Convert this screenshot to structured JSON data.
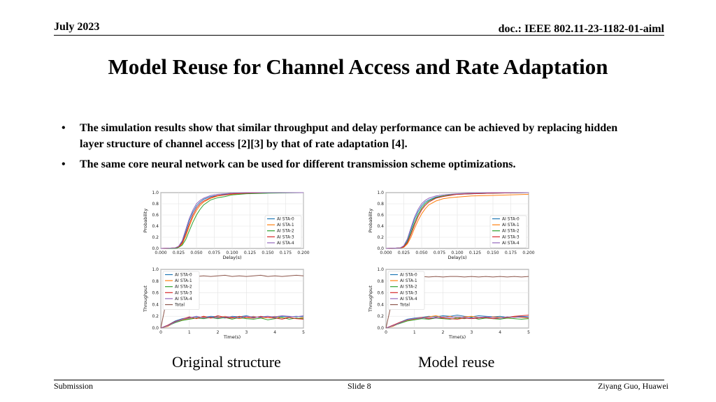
{
  "header": {
    "date": "July 2023",
    "doc": "doc.: IEEE 802.11-23-1182-01-aiml"
  },
  "title": "Model Reuse for Channel Access and Rate Adaptation",
  "bullets": [
    "The simulation results show that similar throughput and delay performance can be achieved by replacing hidden layer structure of channel access [2][3] by that of rate adaptation [4].",
    "The same core neural network can be used for different transmission scheme optimizations."
  ],
  "bullet_glyph": "•",
  "captions": {
    "left": "Original structure",
    "right": "Model reuse"
  },
  "footer": {
    "left": "Submission",
    "center": "Slide 8",
    "right": "Ziyang Guo, Huawei"
  },
  "series_colors": [
    "#1f77b4",
    "#ff7f0e",
    "#2ca02c",
    "#d62728",
    "#9467bd",
    "#8c564b"
  ],
  "chart_data": [
    {
      "type": "line",
      "title": "",
      "xlabel": "Delay(s)",
      "ylabel": "Probability",
      "xlim": [
        0,
        0.2
      ],
      "ylim": [
        0,
        1.0
      ],
      "xticks": [
        "0.000",
        "0.025",
        "0.050",
        "0.075",
        "0.100",
        "0.125",
        "0.150",
        "0.175",
        "0.200"
      ],
      "yticks": [
        "0.0",
        "0.2",
        "0.4",
        "0.6",
        "0.8",
        "1.0"
      ],
      "legend": "bottom-right",
      "x": [
        0,
        0.02,
        0.025,
        0.03,
        0.035,
        0.04,
        0.045,
        0.05,
        0.055,
        0.06,
        0.07,
        0.08,
        0.09,
        0.1,
        0.12,
        0.15,
        0.2
      ],
      "series": [
        {
          "name": "AI STA-0",
          "values": [
            0,
            0.01,
            0.03,
            0.12,
            0.3,
            0.5,
            0.65,
            0.76,
            0.83,
            0.88,
            0.93,
            0.95,
            0.97,
            0.98,
            0.99,
            1.0,
            1.0
          ]
        },
        {
          "name": "AI STA-1",
          "values": [
            0,
            0.01,
            0.02,
            0.08,
            0.22,
            0.4,
            0.56,
            0.68,
            0.77,
            0.83,
            0.9,
            0.94,
            0.96,
            0.97,
            0.99,
            1.0,
            1.0
          ]
        },
        {
          "name": "AI STA-2",
          "values": [
            0,
            0.0,
            0.02,
            0.06,
            0.16,
            0.32,
            0.47,
            0.6,
            0.7,
            0.78,
            0.87,
            0.91,
            0.93,
            0.96,
            0.98,
            0.99,
            1.0
          ]
        },
        {
          "name": "AI STA-3",
          "values": [
            0,
            0.01,
            0.03,
            0.1,
            0.26,
            0.44,
            0.6,
            0.72,
            0.8,
            0.85,
            0.91,
            0.95,
            0.96,
            0.98,
            0.99,
            1.0,
            1.0
          ]
        },
        {
          "name": "AI STA-4",
          "values": [
            0,
            0.01,
            0.04,
            0.14,
            0.34,
            0.54,
            0.69,
            0.8,
            0.86,
            0.9,
            0.95,
            0.97,
            0.98,
            0.99,
            1.0,
            1.0,
            1.0
          ]
        }
      ]
    },
    {
      "type": "line",
      "title": "",
      "xlabel": "Time(s)",
      "ylabel": "Throughput",
      "xlim": [
        0,
        5
      ],
      "ylim": [
        0,
        1.0
      ],
      "xticks": [
        "0",
        "1",
        "2",
        "3",
        "4",
        "5"
      ],
      "yticks": [
        "0.0",
        "0.2",
        "0.4",
        "0.6",
        "0.8",
        "1.0"
      ],
      "legend": "top-left",
      "x": [
        0,
        0.25,
        0.5,
        0.75,
        1,
        1.25,
        1.5,
        1.75,
        2,
        2.25,
        2.5,
        2.75,
        3,
        3.25,
        3.5,
        3.75,
        4,
        4.25,
        4.5,
        4.75,
        5
      ],
      "series": [
        {
          "name": "AI STA-0",
          "values": [
            0,
            0.05,
            0.12,
            0.16,
            0.18,
            0.19,
            0.18,
            0.2,
            0.19,
            0.17,
            0.2,
            0.19,
            0.21,
            0.18,
            0.19,
            0.2,
            0.18,
            0.2,
            0.19,
            0.2,
            0.19
          ]
        },
        {
          "name": "AI STA-1",
          "values": [
            0,
            0.03,
            0.1,
            0.14,
            0.16,
            0.17,
            0.19,
            0.17,
            0.18,
            0.2,
            0.18,
            0.16,
            0.18,
            0.2,
            0.17,
            0.18,
            0.2,
            0.17,
            0.18,
            0.16,
            0.18
          ]
        },
        {
          "name": "AI STA-2",
          "values": [
            0,
            0.04,
            0.09,
            0.13,
            0.15,
            0.17,
            0.16,
            0.18,
            0.16,
            0.18,
            0.15,
            0.18,
            0.16,
            0.15,
            0.17,
            0.14,
            0.16,
            0.18,
            0.15,
            0.17,
            0.16
          ]
        },
        {
          "name": "AI STA-3",
          "values": [
            0,
            0.05,
            0.11,
            0.15,
            0.19,
            0.16,
            0.2,
            0.17,
            0.21,
            0.18,
            0.17,
            0.2,
            0.18,
            0.17,
            0.2,
            0.18,
            0.17,
            0.15,
            0.18,
            0.16,
            0.15
          ]
        },
        {
          "name": "AI STA-4",
          "values": [
            0,
            0.04,
            0.1,
            0.15,
            0.17,
            0.2,
            0.17,
            0.19,
            0.17,
            0.19,
            0.19,
            0.17,
            0.2,
            0.19,
            0.18,
            0.2,
            0.19,
            0.21,
            0.2,
            0.19,
            0.21
          ]
        },
        {
          "name": "Total",
          "values": [
            0,
            0.6,
            0.89,
            0.88,
            0.89,
            0.88,
            0.89,
            0.88,
            0.89,
            0.9,
            0.88,
            0.89,
            0.88,
            0.89,
            0.9,
            0.88,
            0.89,
            0.88,
            0.89,
            0.9,
            0.89
          ]
        }
      ]
    },
    {
      "type": "line",
      "title": "",
      "xlabel": "Delay(s)",
      "ylabel": "Probability",
      "xlim": [
        0,
        0.2
      ],
      "ylim": [
        0,
        1.0
      ],
      "xticks": [
        "0.000",
        "0.025",
        "0.050",
        "0.075",
        "0.100",
        "0.125",
        "0.150",
        "0.175",
        "0.200"
      ],
      "yticks": [
        "0.0",
        "0.2",
        "0.4",
        "0.6",
        "0.8",
        "1.0"
      ],
      "legend": "bottom-right",
      "x": [
        0,
        0.02,
        0.025,
        0.03,
        0.035,
        0.04,
        0.045,
        0.05,
        0.055,
        0.06,
        0.07,
        0.08,
        0.09,
        0.1,
        0.12,
        0.15,
        0.2
      ],
      "series": [
        {
          "name": "AI STA-0",
          "values": [
            0,
            0.01,
            0.04,
            0.15,
            0.33,
            0.52,
            0.66,
            0.76,
            0.83,
            0.87,
            0.92,
            0.94,
            0.96,
            0.97,
            0.98,
            0.99,
            1.0
          ]
        },
        {
          "name": "AI STA-1",
          "values": [
            0,
            0.01,
            0.02,
            0.08,
            0.2,
            0.36,
            0.5,
            0.62,
            0.71,
            0.78,
            0.85,
            0.89,
            0.91,
            0.92,
            0.94,
            0.95,
            0.97
          ]
        },
        {
          "name": "AI STA-2",
          "values": [
            0,
            0.01,
            0.03,
            0.12,
            0.28,
            0.46,
            0.61,
            0.72,
            0.8,
            0.85,
            0.91,
            0.94,
            0.96,
            0.97,
            0.98,
            0.99,
            1.0
          ]
        },
        {
          "name": "AI STA-3",
          "values": [
            0,
            0.01,
            0.03,
            0.1,
            0.25,
            0.42,
            0.57,
            0.69,
            0.77,
            0.83,
            0.9,
            0.93,
            0.95,
            0.97,
            0.98,
            0.99,
            1.0
          ]
        },
        {
          "name": "AI STA-4",
          "values": [
            0,
            0.01,
            0.05,
            0.17,
            0.37,
            0.56,
            0.7,
            0.8,
            0.86,
            0.9,
            0.94,
            0.96,
            0.97,
            0.98,
            0.99,
            1.0,
            1.0
          ]
        }
      ]
    },
    {
      "type": "line",
      "title": "",
      "xlabel": "Time(s)",
      "ylabel": "Throughput",
      "xlim": [
        0,
        5
      ],
      "ylim": [
        0,
        1.0
      ],
      "xticks": [
        "0",
        "1",
        "2",
        "3",
        "4",
        "5"
      ],
      "yticks": [
        "0.0",
        "0.2",
        "0.4",
        "0.6",
        "0.8",
        "1.0"
      ],
      "legend": "top-left",
      "x": [
        0,
        0.25,
        0.5,
        0.75,
        1,
        1.25,
        1.5,
        1.75,
        2,
        2.25,
        2.5,
        2.75,
        3,
        3.25,
        3.5,
        3.75,
        4,
        4.25,
        4.5,
        4.75,
        5
      ],
      "series": [
        {
          "name": "AI STA-0",
          "values": [
            0,
            0.04,
            0.1,
            0.15,
            0.17,
            0.18,
            0.2,
            0.19,
            0.21,
            0.2,
            0.22,
            0.2,
            0.19,
            0.21,
            0.2,
            0.19,
            0.2,
            0.18,
            0.19,
            0.2,
            0.19
          ]
        },
        {
          "name": "AI STA-1",
          "values": [
            0,
            0.03,
            0.09,
            0.13,
            0.15,
            0.17,
            0.19,
            0.21,
            0.18,
            0.2,
            0.17,
            0.19,
            0.2,
            0.18,
            0.17,
            0.19,
            0.18,
            0.17,
            0.19,
            0.18,
            0.17
          ]
        },
        {
          "name": "AI STA-2",
          "values": [
            0,
            0.04,
            0.08,
            0.12,
            0.14,
            0.16,
            0.15,
            0.17,
            0.16,
            0.15,
            0.17,
            0.16,
            0.18,
            0.15,
            0.17,
            0.16,
            0.15,
            0.17,
            0.16,
            0.15,
            0.16
          ]
        },
        {
          "name": "AI STA-3",
          "values": [
            0,
            0.05,
            0.1,
            0.14,
            0.16,
            0.18,
            0.16,
            0.18,
            0.17,
            0.16,
            0.15,
            0.17,
            0.16,
            0.17,
            0.18,
            0.16,
            0.17,
            0.18,
            0.2,
            0.21,
            0.22
          ]
        },
        {
          "name": "AI STA-4",
          "values": [
            0,
            0.04,
            0.09,
            0.14,
            0.16,
            0.17,
            0.18,
            0.17,
            0.19,
            0.18,
            0.19,
            0.18,
            0.17,
            0.18,
            0.19,
            0.18,
            0.17,
            0.19,
            0.18,
            0.19,
            0.18
          ]
        },
        {
          "name": "Total",
          "values": [
            0,
            0.55,
            0.87,
            0.88,
            0.87,
            0.88,
            0.87,
            0.88,
            0.87,
            0.88,
            0.88,
            0.87,
            0.88,
            0.87,
            0.88,
            0.87,
            0.88,
            0.87,
            0.88,
            0.87,
            0.88
          ]
        }
      ]
    }
  ]
}
